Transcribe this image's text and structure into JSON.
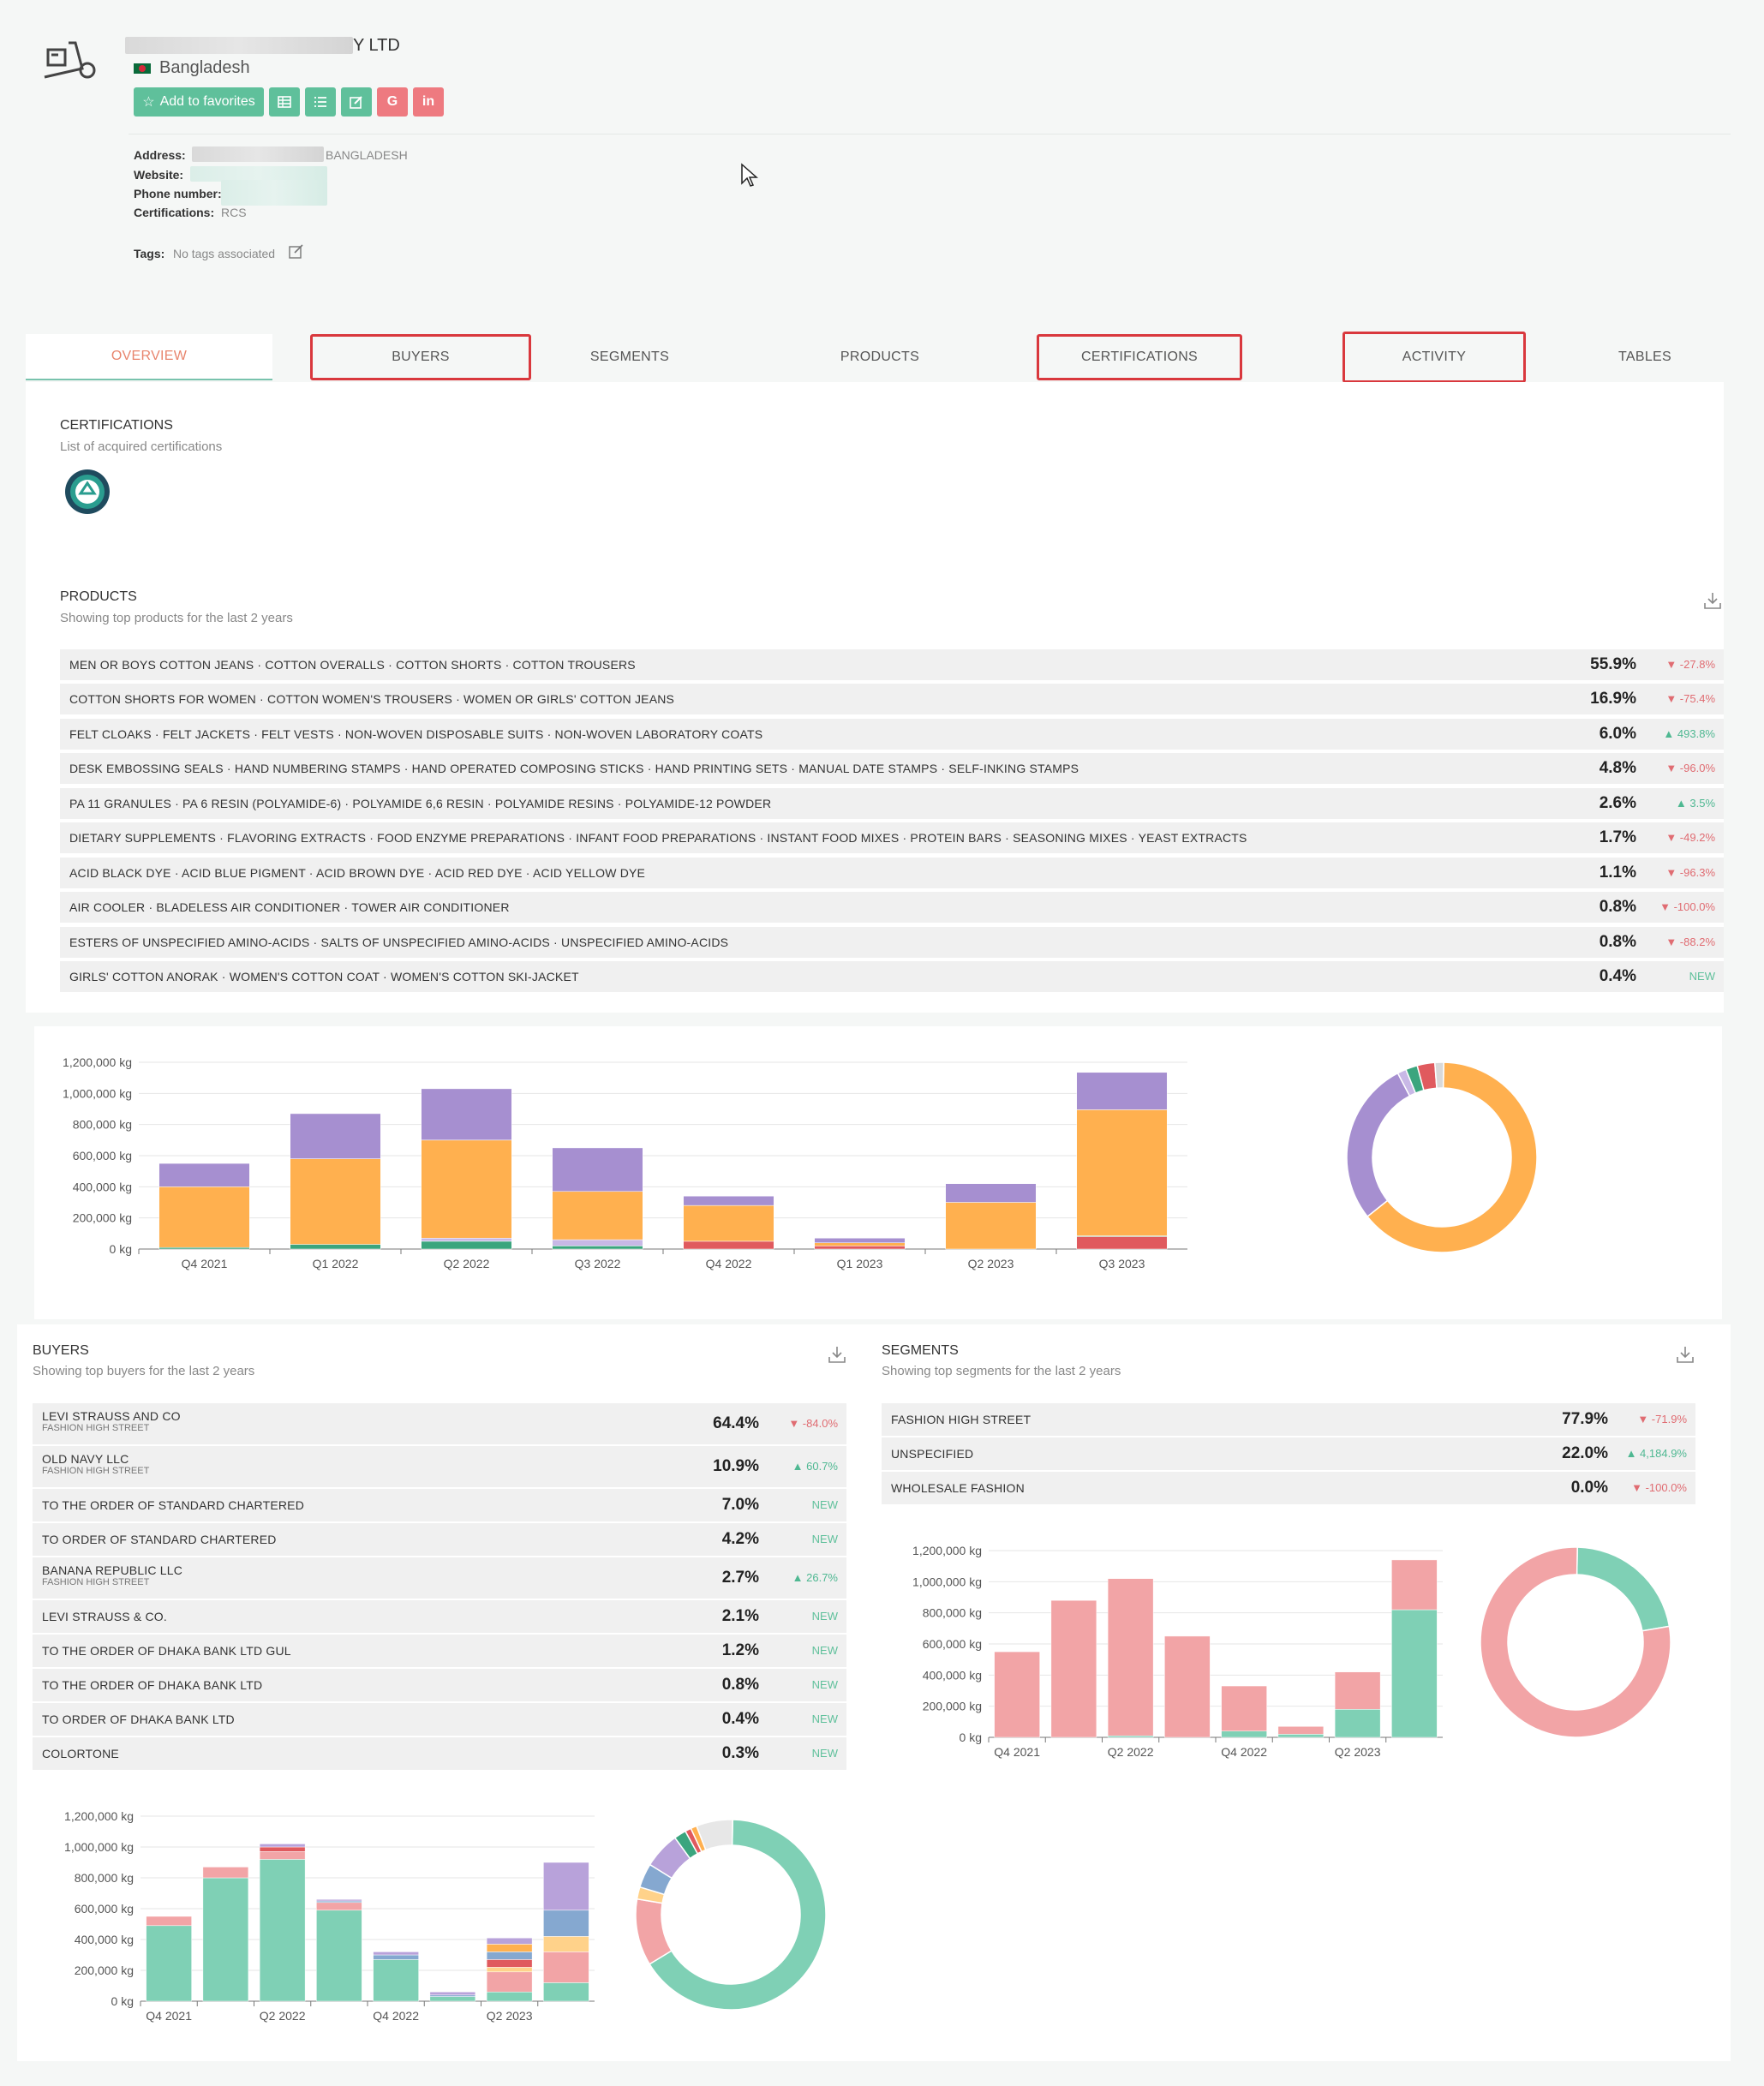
{
  "header": {
    "company_name_suffix": "Y LTD",
    "country": "Bangladesh",
    "favorites_label": "Add to favorites",
    "address_label": "Address:",
    "address_value": "BANGLADESH",
    "website_label": "Website:",
    "phone_label": "Phone number:",
    "cert_label": "Certifications:",
    "cert_value": "RCS",
    "tags_label": "Tags:",
    "tags_value": "No tags associated"
  },
  "tabs": [
    {
      "label": "OVERVIEW",
      "active": true
    },
    {
      "label": "BUYERS"
    },
    {
      "label": "SEGMENTS"
    },
    {
      "label": "PRODUCTS"
    },
    {
      "label": "CERTIFICATIONS"
    },
    {
      "label": "ACTIVITY"
    },
    {
      "label": "TABLES"
    }
  ],
  "certifications": {
    "title": "CERTIFICATIONS",
    "subtitle": "List of acquired certifications"
  },
  "products": {
    "title": "PRODUCTS",
    "subtitle": "Showing top products for the last 2 years",
    "rows": [
      {
        "label": "MEN OR BOYS COTTON JEANS · COTTON OVERALLS · COTTON SHORTS · COTTON TROUSERS",
        "pct": "55.9%",
        "chg": "-27.8%",
        "dir": "neg"
      },
      {
        "label": "COTTON SHORTS FOR WOMEN · COTTON WOMEN'S TROUSERS · WOMEN OR GIRLS' COTTON JEANS",
        "pct": "16.9%",
        "chg": "-75.4%",
        "dir": "neg"
      },
      {
        "label": "FELT CLOAKS · FELT JACKETS · FELT VESTS · NON-WOVEN DISPOSABLE SUITS · NON-WOVEN LABORATORY COATS",
        "pct": "6.0%",
        "chg": "493.8%",
        "dir": "pos"
      },
      {
        "label": "DESK EMBOSSING SEALS · HAND NUMBERING STAMPS · HAND OPERATED COMPOSING STICKS · HAND PRINTING SETS · MANUAL DATE STAMPS · SELF-INKING STAMPS",
        "pct": "4.8%",
        "chg": "-96.0%",
        "dir": "neg"
      },
      {
        "label": "PA 11 GRANULES · PA 6 RESIN (POLYAMIDE-6) · POLYAMIDE 6,6 RESIN · POLYAMIDE RESINS · POLYAMIDE-12 POWDER",
        "pct": "2.6%",
        "chg": "3.5%",
        "dir": "pos"
      },
      {
        "label": "DIETARY SUPPLEMENTS · FLAVORING EXTRACTS · FOOD ENZYME PREPARATIONS · INFANT FOOD PREPARATIONS · INSTANT FOOD MIXES · PROTEIN BARS · SEASONING MIXES · YEAST EXTRACTS",
        "pct": "1.7%",
        "chg": "-49.2%",
        "dir": "neg"
      },
      {
        "label": "ACID BLACK DYE · ACID BLUE PIGMENT · ACID BROWN DYE · ACID RED DYE · ACID YELLOW DYE",
        "pct": "1.1%",
        "chg": "-96.3%",
        "dir": "neg"
      },
      {
        "label": "AIR COOLER · BLADELESS AIR CONDITIONER · TOWER AIR CONDITIONER",
        "pct": "0.8%",
        "chg": "-100.0%",
        "dir": "neg"
      },
      {
        "label": "ESTERS OF UNSPECIFIED AMINO-ACIDS · SALTS OF UNSPECIFIED AMINO-ACIDS · UNSPECIFIED AMINO-ACIDS",
        "pct": "0.8%",
        "chg": "-88.2%",
        "dir": "neg"
      },
      {
        "label": "GIRLS' COTTON ANORAK · WOMEN'S COTTON COAT · WOMEN'S COTTON SKI-JACKET",
        "pct": "0.4%",
        "chg": "NEW",
        "dir": "new"
      }
    ]
  },
  "buyers": {
    "title": "BUYERS",
    "subtitle": "Showing top buyers for the last 2 years",
    "rows": [
      {
        "label": "LEVI STRAUSS AND CO",
        "sub": "FASHION HIGH STREET",
        "pct": "64.4%",
        "chg": "-84.0%",
        "dir": "neg"
      },
      {
        "label": "OLD NAVY LLC",
        "sub": "FASHION HIGH STREET",
        "pct": "10.9%",
        "chg": "60.7%",
        "dir": "pos"
      },
      {
        "label": "TO THE ORDER OF STANDARD CHARTERED",
        "sub": "",
        "pct": "7.0%",
        "chg": "NEW",
        "dir": "new"
      },
      {
        "label": "TO ORDER OF STANDARD CHARTERED",
        "sub": "",
        "pct": "4.2%",
        "chg": "NEW",
        "dir": "new"
      },
      {
        "label": "BANANA REPUBLIC LLC",
        "sub": "FASHION HIGH STREET",
        "pct": "2.7%",
        "chg": "26.7%",
        "dir": "pos"
      },
      {
        "label": "LEVI STRAUSS & CO.",
        "sub": "",
        "pct": "2.1%",
        "chg": "NEW",
        "dir": "new"
      },
      {
        "label": "TO THE ORDER OF DHAKA BANK LTD GUL",
        "sub": "",
        "pct": "1.2%",
        "chg": "NEW",
        "dir": "new"
      },
      {
        "label": "TO THE ORDER OF DHAKA BANK LTD",
        "sub": "",
        "pct": "0.8%",
        "chg": "NEW",
        "dir": "new"
      },
      {
        "label": "TO ORDER OF DHAKA BANK LTD",
        "sub": "",
        "pct": "0.4%",
        "chg": "NEW",
        "dir": "new"
      },
      {
        "label": "COLORTONE",
        "sub": "",
        "pct": "0.3%",
        "chg": "NEW",
        "dir": "new"
      }
    ]
  },
  "segments": {
    "title": "SEGMENTS",
    "subtitle": "Showing top segments for the last 2 years",
    "rows": [
      {
        "label": "FASHION HIGH STREET",
        "pct": "77.9%",
        "chg": "-71.9%",
        "dir": "neg"
      },
      {
        "label": "UNSPECIFIED",
        "pct": "22.0%",
        "chg": "4,184.9%",
        "dir": "pos"
      },
      {
        "label": "WHOLESALE FASHION",
        "pct": "0.0%",
        "chg": "-100.0%",
        "dir": "neg"
      }
    ]
  },
  "colors": {
    "purple": "#a68fd0",
    "orange": "#ffb04f",
    "green": "#3ba57e",
    "red": "#e05a5e",
    "pink": "#f2a4a6",
    "teal": "#7fd0b5",
    "blue": "#85a8d0",
    "yellow": "#ffd28a",
    "lav": "#b8a2da"
  },
  "chart_data": [
    {
      "id": "products",
      "type": "bar",
      "stacked": true,
      "categories": [
        "Q4 2021",
        "Q1 2022",
        "Q2 2022",
        "Q3 2022",
        "Q4 2022",
        "Q1 2023",
        "Q2 2023",
        "Q3 2023"
      ],
      "y_ticks": [
        "0 kg",
        "200,000 kg",
        "400,000 kg",
        "600,000 kg",
        "800,000 kg",
        "1,000,000 kg",
        "1,200,000 kg"
      ],
      "ylim": [
        0,
        1200000
      ],
      "series": [
        {
          "color": "#e05a5e",
          "values": [
            0,
            0,
            0,
            0,
            50000,
            20000,
            0,
            80000
          ]
        },
        {
          "color": "#3ba57e",
          "values": [
            10000,
            30000,
            50000,
            20000,
            0,
            0,
            0,
            5000
          ]
        },
        {
          "color": "#c8b8e6",
          "values": [
            0,
            0,
            20000,
            40000,
            0,
            0,
            0,
            0
          ]
        },
        {
          "color": "#ffb04f",
          "values": [
            390000,
            550000,
            630000,
            310000,
            230000,
            20000,
            300000,
            810000
          ]
        },
        {
          "color": "#a68fd0",
          "values": [
            150000,
            290000,
            330000,
            280000,
            60000,
            30000,
            120000,
            240000
          ]
        }
      ],
      "donut": [
        {
          "color": "#ffb04f",
          "value": 64
        },
        {
          "color": "#a68fd0",
          "value": 28
        },
        {
          "color": "#c8b8e6",
          "value": 1.5
        },
        {
          "color": "#3ba57e",
          "value": 2
        },
        {
          "color": "#e05a5e",
          "value": 3
        },
        {
          "color": "#d9d9d9",
          "value": 1.5
        }
      ]
    },
    {
      "id": "buyers",
      "type": "bar",
      "stacked": true,
      "categories": [
        "Q4 2021",
        "",
        "Q2 2022",
        "",
        "Q4 2022",
        "",
        "Q2 2023",
        ""
      ],
      "y_ticks": [
        "0 kg",
        "200,000 kg",
        "400,000 kg",
        "600,000 kg",
        "800,000 kg",
        "1,000,000 kg",
        "1,200,000 kg"
      ],
      "ylim": [
        0,
        1200000
      ],
      "series": [
        {
          "color": "#7fd0b5",
          "values": [
            490000,
            800000,
            920000,
            590000,
            270000,
            30000,
            60000,
            120000
          ]
        },
        {
          "color": "#f2a4a6",
          "values": [
            60000,
            70000,
            50000,
            50000,
            0,
            0,
            130000,
            200000
          ]
        },
        {
          "color": "#ffd28a",
          "values": [
            0,
            0,
            0,
            0,
            0,
            0,
            30000,
            100000
          ]
        },
        {
          "color": "#e05a5e",
          "values": [
            0,
            0,
            30000,
            0,
            0,
            0,
            50000,
            0
          ]
        },
        {
          "color": "#85a8d0",
          "values": [
            0,
            0,
            0,
            10000,
            30000,
            10000,
            50000,
            170000
          ]
        },
        {
          "color": "#ffb04f",
          "values": [
            0,
            0,
            0,
            0,
            0,
            0,
            50000,
            0
          ]
        },
        {
          "color": "#b8a2da",
          "values": [
            0,
            0,
            20000,
            10000,
            20000,
            20000,
            40000,
            310000
          ]
        }
      ],
      "donut": [
        {
          "color": "#7fd0b5",
          "value": 64
        },
        {
          "color": "#f2a4a6",
          "value": 11
        },
        {
          "color": "#ffd28a",
          "value": 2
        },
        {
          "color": "#85a8d0",
          "value": 4
        },
        {
          "color": "#b8a2da",
          "value": 6
        },
        {
          "color": "#3ba57e",
          "value": 2
        },
        {
          "color": "#e05a5e",
          "value": 1
        },
        {
          "color": "#ffb04f",
          "value": 1
        },
        {
          "color": "#e7e7e7",
          "value": 6
        }
      ]
    },
    {
      "id": "segments",
      "type": "bar",
      "stacked": true,
      "categories": [
        "Q4 2021",
        "",
        "Q2 2022",
        "",
        "Q4 2022",
        "",
        "Q2 2023",
        ""
      ],
      "y_ticks": [
        "0 kg",
        "200,000 kg",
        "400,000 kg",
        "600,000 kg",
        "800,000 kg",
        "1,000,000 kg",
        "1,200,000 kg"
      ],
      "ylim": [
        0,
        1200000
      ],
      "series": [
        {
          "color": "#7fd0b5",
          "values": [
            0,
            0,
            10000,
            0,
            40000,
            20000,
            180000,
            820000
          ]
        },
        {
          "color": "#f2a4a6",
          "values": [
            550000,
            880000,
            1010000,
            650000,
            290000,
            50000,
            240000,
            320000
          ]
        }
      ],
      "donut": [
        {
          "color": "#7fd0b5",
          "value": 22
        },
        {
          "color": "#f2a4a6",
          "value": 78
        }
      ]
    }
  ]
}
